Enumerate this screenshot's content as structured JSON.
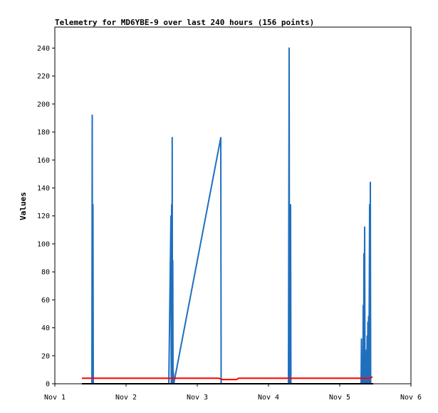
{
  "chart_data": {
    "type": "line",
    "title": "Telemetry for MD6YBE-9 over last 240 hours (156 points)",
    "xlabel": "",
    "ylabel": "Values",
    "xlim": [
      "Nov 1",
      "Nov 6"
    ],
    "ylim": [
      0,
      255
    ],
    "x_ticks": [
      "Nov 1",
      "Nov 2",
      "Nov 3",
      "Nov 4",
      "Nov 5",
      "Nov 6"
    ],
    "y_ticks": [
      0,
      20,
      40,
      60,
      80,
      100,
      120,
      140,
      160,
      180,
      200,
      220,
      240
    ],
    "grid": false,
    "series": [
      {
        "color": "#1f6fbf",
        "points": [
          [
            1.39,
            0
          ],
          [
            1.52,
            0
          ],
          [
            1.525,
            192
          ],
          [
            1.53,
            0
          ],
          [
            1.535,
            128
          ],
          [
            1.54,
            0
          ],
          [
            2.6,
            0
          ],
          [
            2.63,
            120
          ],
          [
            2.635,
            0
          ],
          [
            2.64,
            128
          ],
          [
            2.645,
            0
          ],
          [
            2.648,
            176
          ],
          [
            2.652,
            0
          ],
          [
            2.656,
            88
          ],
          [
            2.66,
            0
          ],
          [
            2.665,
            8
          ],
          [
            2.67,
            0
          ],
          [
            3.33,
            176
          ],
          [
            3.335,
            0
          ],
          [
            4.28,
            0
          ],
          [
            4.29,
            240
          ],
          [
            4.295,
            0
          ],
          [
            4.3,
            120
          ],
          [
            4.305,
            0
          ],
          [
            4.31,
            128
          ],
          [
            4.315,
            0
          ],
          [
            5.3,
            0
          ],
          [
            5.305,
            32
          ],
          [
            5.31,
            0
          ],
          [
            5.32,
            18
          ],
          [
            5.325,
            0
          ],
          [
            5.33,
            56
          ],
          [
            5.335,
            0
          ],
          [
            5.34,
            93
          ],
          [
            5.345,
            0
          ],
          [
            5.35,
            112
          ],
          [
            5.355,
            0
          ],
          [
            5.36,
            17
          ],
          [
            5.365,
            0
          ],
          [
            5.375,
            24
          ],
          [
            5.38,
            0
          ],
          [
            5.385,
            34
          ],
          [
            5.39,
            0
          ],
          [
            5.395,
            44
          ],
          [
            5.4,
            0
          ],
          [
            5.405,
            48
          ],
          [
            5.41,
            0
          ],
          [
            5.42,
            128
          ],
          [
            5.425,
            0
          ],
          [
            5.43,
            144
          ],
          [
            5.435,
            0
          ]
        ]
      },
      {
        "color": "#ff0000",
        "points": [
          [
            1.38,
            4
          ],
          [
            1.65,
            4
          ],
          [
            2.0,
            4
          ],
          [
            2.6,
            4
          ],
          [
            2.65,
            4
          ],
          [
            3.0,
            4
          ],
          [
            3.3,
            4
          ],
          [
            3.35,
            3
          ],
          [
            3.55,
            3
          ],
          [
            3.58,
            4
          ],
          [
            4.0,
            4
          ],
          [
            4.28,
            4
          ],
          [
            4.32,
            4
          ],
          [
            4.7,
            4
          ],
          [
            5.0,
            4
          ],
          [
            5.43,
            4
          ],
          [
            5.46,
            5
          ]
        ]
      },
      {
        "color": "#000000",
        "points": [
          [
            1.38,
            0
          ],
          [
            5.47,
            0
          ]
        ]
      }
    ]
  }
}
